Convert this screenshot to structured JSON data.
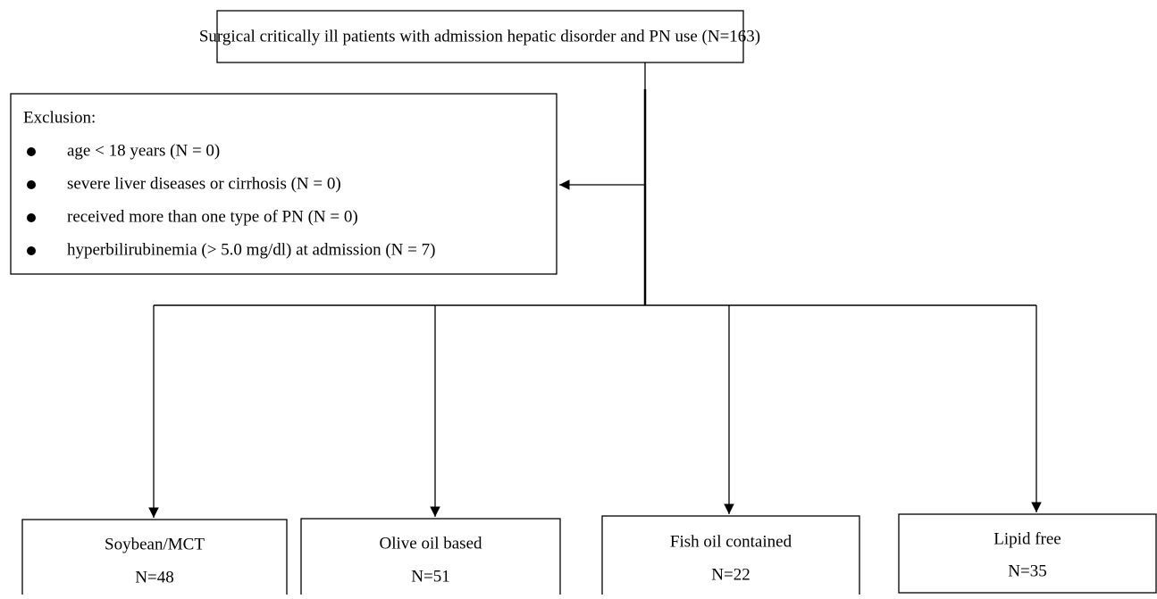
{
  "header": {
    "text": "Surgical critically ill patients with admission hepatic disorder and PN use (N=163)"
  },
  "exclusion": {
    "title": "Exclusion:",
    "items": [
      "age < 18 years (N = 0)",
      "severe liver diseases or cirrhosis (N = 0)",
      "received more than one type of PN (N = 0)",
      "hyperbilirubinemia (> 5.0 mg/dl) at admission (N = 7)"
    ]
  },
  "groups": [
    {
      "label": "Soybean/MCT",
      "count": "N=48"
    },
    {
      "label": "Olive oil based",
      "count": "N=51"
    },
    {
      "label": "Fish oil contained",
      "count": "N=22"
    },
    {
      "label": "Lipid free",
      "count": "N=35"
    }
  ]
}
